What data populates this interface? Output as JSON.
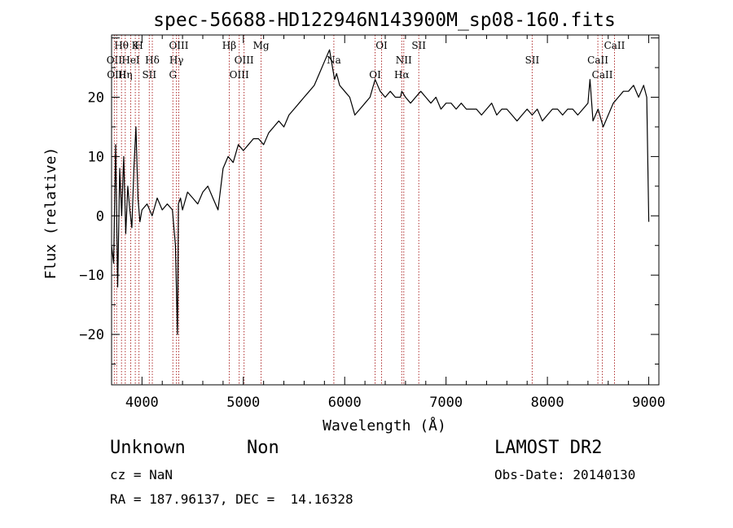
{
  "chart_data": {
    "type": "line",
    "title": "spec-56688-HD122946N143900M_sp08-160.fits",
    "xlabel": "Wavelength (Å)",
    "ylabel": "Flux (relative)",
    "xlim": [
      3700,
      9100
    ],
    "ylim": [
      -28.5,
      30.5
    ],
    "xticks": [
      4000,
      5000,
      6000,
      7000,
      8000,
      9000
    ],
    "yticks": [
      -20,
      -10,
      0,
      10,
      20
    ],
    "grid": false,
    "series": [
      {
        "x": [
          3700,
          3720,
          3740,
          3760,
          3780,
          3800,
          3820,
          3840,
          3860,
          3880,
          3900,
          3920,
          3940,
          3960,
          3980,
          4000,
          4050,
          4100,
          4150,
          4200,
          4250,
          4300,
          4330,
          4350,
          4360,
          4380,
          4400,
          4450,
          4500,
          4550,
          4600,
          4650,
          4700,
          4750,
          4800,
          4850,
          4900,
          4950,
          5000,
          5050,
          5100,
          5150,
          5200,
          5250,
          5300,
          5350,
          5400,
          5450,
          5500,
          5550,
          5600,
          5650,
          5700,
          5750,
          5800,
          5850,
          5880,
          5900,
          5920,
          5950,
          6000,
          6050,
          6100,
          6150,
          6200,
          6250,
          6300,
          6350,
          6400,
          6450,
          6500,
          6550,
          6563,
          6600,
          6650,
          6700,
          6750,
          6800,
          6850,
          6900,
          6950,
          7000,
          7050,
          7100,
          7150,
          7200,
          7250,
          7300,
          7350,
          7400,
          7450,
          7500,
          7550,
          7600,
          7650,
          7700,
          7750,
          7800,
          7850,
          7900,
          7950,
          8000,
          8050,
          8100,
          8150,
          8200,
          8250,
          8300,
          8350,
          8400,
          8420,
          8450,
          8500,
          8550,
          8600,
          8650,
          8700,
          8750,
          8800,
          8850,
          8900,
          8950,
          8980,
          9000
        ],
        "y": [
          -5,
          -8,
          12,
          -12,
          8,
          0,
          10,
          -3,
          5,
          1,
          -2,
          8,
          15,
          3,
          -1,
          1,
          2,
          0,
          3,
          1,
          2,
          1,
          -5,
          -20,
          2,
          3,
          1,
          4,
          3,
          2,
          4,
          5,
          3,
          1,
          8,
          10,
          9,
          12,
          11,
          12,
          13,
          13,
          12,
          14,
          15,
          16,
          15,
          17,
          18,
          19,
          20,
          21,
          22,
          24,
          26,
          28,
          25,
          23,
          24,
          22,
          21,
          20,
          17,
          18,
          19,
          20,
          23,
          21,
          20,
          21,
          20,
          20,
          21,
          20,
          19,
          20,
          21,
          20,
          19,
          20,
          18,
          19,
          19,
          18,
          19,
          18,
          18,
          18,
          17,
          18,
          19,
          17,
          18,
          18,
          17,
          16,
          17,
          18,
          17,
          18,
          16,
          17,
          18,
          18,
          17,
          18,
          18,
          17,
          18,
          19,
          23,
          16,
          18,
          15,
          17,
          19,
          20,
          21,
          21,
          22,
          20,
          22,
          20,
          -1
        ]
      }
    ],
    "line_markers": [
      {
        "label": "Hθ",
        "x": 3798
      },
      {
        "label": "OII",
        "x": 3727
      },
      {
        "label": "OIII",
        "x": 3750
      },
      {
        "label": "K",
        "x": 3934
      },
      {
        "label": "HeI",
        "x": 3889
      },
      {
        "label": "Hη",
        "x": 3835
      },
      {
        "label": "H",
        "x": 3970
      },
      {
        "label": "Hδ",
        "x": 4102
      },
      {
        "label": "SII",
        "x": 4072
      },
      {
        "label": "OIII",
        "x": 4363
      },
      {
        "label": "Hγ",
        "x": 4340
      },
      {
        "label": "G",
        "x": 4305
      },
      {
        "label": "Hβ",
        "x": 4861
      },
      {
        "label": "OIII",
        "x": 5007
      },
      {
        "label": "OIII",
        "x": 4959
      },
      {
        "label": "Mg",
        "x": 5175
      },
      {
        "label": "Na",
        "x": 5893
      },
      {
        "label": "OI",
        "x": 6300
      },
      {
        "label": "OI",
        "x": 6364
      },
      {
        "label": "NII",
        "x": 6583
      },
      {
        "label": "Hα",
        "x": 6563
      },
      {
        "label": "SII",
        "x": 6731
      },
      {
        "label": "SII",
        "x": 7850
      },
      {
        "label": "CaII",
        "x": 8542
      },
      {
        "label": "CaII",
        "x": 8662
      },
      {
        "label": "CaII",
        "x": 8498
      }
    ]
  },
  "info": {
    "object_class": "Unknown",
    "subclass": "Non",
    "survey": "LAMOST DR2",
    "redshift": "cz = NaN",
    "obs_date": "Obs-Date: 20140130",
    "coordinates": "RA = 187.96137, DEC =  14.16328"
  },
  "colors": {
    "spectrum": "#000000",
    "marker_line": "#b03030",
    "axis": "#000000"
  }
}
